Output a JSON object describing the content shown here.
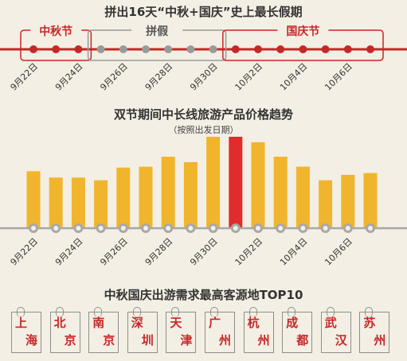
{
  "header": {
    "title": "拼出16天“中秋+国庆”史上最长假期"
  },
  "timeline": {
    "segments": [
      {
        "label": "中秋节",
        "style": "red-box",
        "points": 3
      },
      {
        "label": "拼假",
        "style": "gray-box",
        "points": 8
      },
      {
        "label": "国庆节",
        "style": "red-box",
        "points": 8
      }
    ],
    "date_labels": [
      "9月22日",
      "9月24日",
      "9月26日",
      "9月28日",
      "9月30日",
      "10月2日",
      "10月4日",
      "10月6日"
    ],
    "colors": {
      "red": "#c62727",
      "gray": "#9a9a9a",
      "line": "#c62727"
    }
  },
  "chart_data": {
    "type": "bar",
    "title": "双节期间中长线旅游产品价格趋势",
    "subtitle": "（按照出发日期）",
    "xlabel": "",
    "ylabel": "",
    "x_tick_labels": [
      "9月22日",
      "9月24日",
      "9月26日",
      "9月28日",
      "9月30日",
      "10月2日",
      "10月4日",
      "10月6日"
    ],
    "values": [
      62,
      55,
      55,
      52,
      66,
      67,
      78,
      72,
      100,
      100,
      94,
      78,
      67,
      52,
      58,
      60
    ],
    "highlight_index": 9,
    "colors": {
      "bar": "#f1b52d",
      "highlight": "#e02c2c",
      "node": "#a8a8a8"
    },
    "value_unit": "relative"
  },
  "cities": {
    "title": "中秋国庆出游需求最高客源地TOP10",
    "items": [
      "上海",
      "北京",
      "南京",
      "深圳",
      "天津",
      "广州",
      "杭州",
      "成都",
      "武汉",
      "苏州"
    ]
  }
}
